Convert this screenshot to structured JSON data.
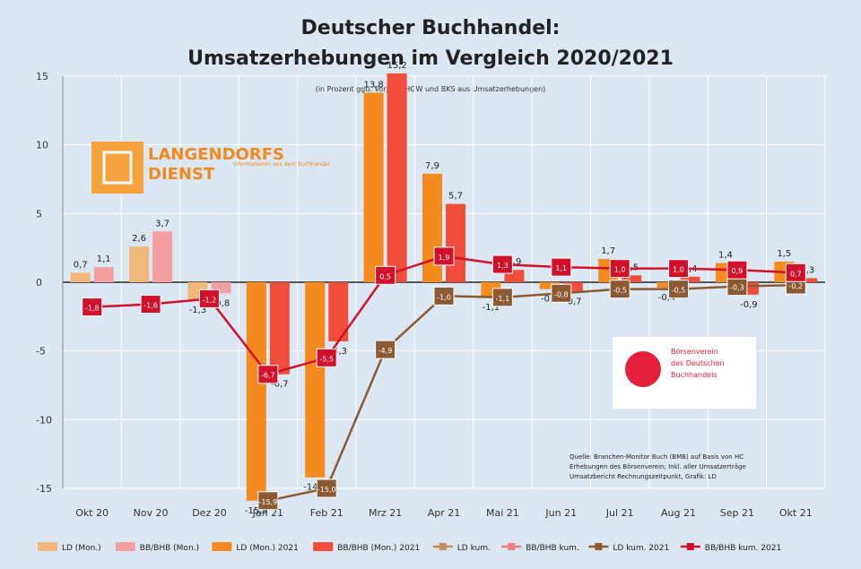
{
  "chart_data": {
    "type": "bar",
    "title": "Deutscher Buchhandel:",
    "subtitle": "Umsatzerhebungen im Vergleich 2020/2021",
    "note": "(in Prozent ggü. Vorjahr; HGW und BKS aus Umsatzerhebungen)",
    "categories": [
      "Okt 20",
      "Nov 20",
      "Dez 20",
      "Jan 21",
      "Feb 21",
      "Mrz 21",
      "Apr 21",
      "Mai 21",
      "Jun 21",
      "Jul 21",
      "Aug 21",
      "Sep 21",
      "Okt 21"
    ],
    "yticks": [
      "15",
      "10",
      "5",
      "0",
      "-5",
      "-10",
      "-15"
    ],
    "ylim": [
      -15,
      15
    ],
    "series": [
      {
        "name": "LD (Mon.)",
        "kind": "bar",
        "color": "#f2b77a",
        "values": [
          0.7,
          2.6,
          -1.3,
          null,
          null,
          null,
          null,
          null,
          null,
          null,
          null,
          null,
          null
        ],
        "labels": [
          "0,7",
          "2,6",
          "-1,3",
          null,
          null,
          null,
          null,
          null,
          null,
          null,
          null,
          null,
          null
        ]
      },
      {
        "name": "BB/BHB (Mon.)",
        "kind": "bar",
        "color": "#f4a0a0",
        "values": [
          1.1,
          3.7,
          -0.8,
          null,
          null,
          null,
          null,
          null,
          null,
          null,
          null,
          null,
          null
        ],
        "labels": [
          "1,1",
          "3,7",
          "-0,8",
          null,
          null,
          null,
          null,
          null,
          null,
          null,
          null,
          null,
          null
        ]
      },
      {
        "name": "LD (Mon.) 2021",
        "kind": "bar",
        "color": "#f58a1f",
        "values": [
          null,
          null,
          null,
          -15.9,
          -14.2,
          13.8,
          7.9,
          -1.1,
          -0.5,
          1.7,
          -0.4,
          1.4,
          1.5
        ],
        "labels": [
          null,
          null,
          null,
          "-15,9",
          "-14,2",
          "13,8",
          "7,9",
          "-1,1",
          "-0,5",
          "1,7",
          "-0,4",
          "1,4",
          "1,5"
        ]
      },
      {
        "name": "BB/BHB (Mon.) 2021",
        "kind": "bar",
        "color": "#f24d3a",
        "values": [
          null,
          null,
          null,
          -6.7,
          -4.3,
          15.2,
          5.7,
          0.9,
          -0.7,
          0.5,
          0.4,
          -0.9,
          0.3
        ],
        "labels": [
          null,
          null,
          null,
          "-6,7",
          "-4,3",
          "15,2",
          "5,7",
          "0,9",
          "-0,7",
          "0,5",
          "0,4",
          "-0,9",
          "0,3"
        ]
      },
      {
        "name": "LD kum.",
        "kind": "line",
        "color": "#c98b5c",
        "values": [
          null,
          null,
          null,
          null,
          null,
          null,
          null,
          null,
          null,
          null,
          null,
          null,
          null
        ],
        "labels": []
      },
      {
        "name": "BB/BHB kum.",
        "kind": "line",
        "color": "#f07e7e",
        "values": [
          null,
          null,
          null,
          null,
          null,
          null,
          null,
          null,
          null,
          null,
          null,
          null,
          null
        ],
        "labels": []
      },
      {
        "name": "LD kum. 2021",
        "kind": "line",
        "color": "#8b5a32",
        "values": [
          null,
          null,
          null,
          -15.9,
          -15.0,
          -4.9,
          -1.0,
          -1.1,
          -0.8,
          -0.5,
          -0.5,
          -0.3,
          -0.2
        ],
        "labels": [
          null,
          null,
          null,
          "-15,9",
          "-15,0",
          "-4,9",
          "-1,0",
          "-1,1",
          "-0,8",
          "-0,5",
          "-0,5",
          "-0,3",
          "-0,2"
        ]
      },
      {
        "name": "BB/BHB kum. 2021",
        "kind": "line",
        "color": "#d2102b",
        "values": [
          -1.8,
          -1.6,
          -1.2,
          -6.7,
          -5.5,
          0.5,
          1.9,
          1.3,
          1.1,
          1.0,
          1.0,
          0.9,
          0.7
        ],
        "labels": [
          "-1,8",
          "-1,6",
          "-1,2",
          "-6,7",
          "-5,5",
          "0,5",
          "1,9",
          "1,3",
          "1,1",
          "1,0",
          "1,0",
          "0,9",
          "0,7"
        ]
      }
    ],
    "grid": true,
    "legend_position": "bottom"
  },
  "logos": {
    "left": {
      "line1": "LANGENDORFS",
      "line2": "DIENST",
      "tag": "Informationen aus dem Buchhandel"
    },
    "right": {
      "line1": "Börsenverein",
      "line2": "des Deutschen",
      "line3": "Buchhandels"
    }
  },
  "source_note": [
    "Quelle: Branchen-Monitor Buch (BMB) auf Basis von HC",
    "Erhebungen des Börsenverein; Inkl. aller Umsatzerträge",
    "Umsatzbericht Rechnungszeitpunkt, Grafik: LD"
  ],
  "colors": {
    "background": "#dbe7f3"
  }
}
